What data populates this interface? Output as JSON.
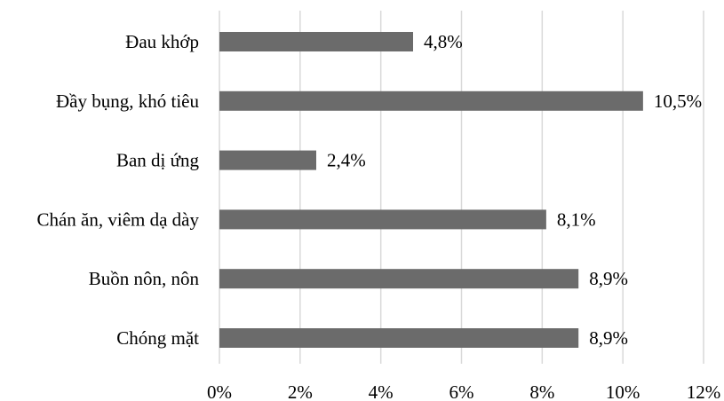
{
  "chart_data": {
    "type": "bar",
    "orientation": "horizontal",
    "categories": [
      "Đau khớp",
      "Đầy bụng, khó tiêu",
      "Ban dị ứng",
      "Chán ăn, viêm dạ dày",
      "Buồn nôn, nôn",
      "Chóng mặt"
    ],
    "values": [
      4.8,
      10.5,
      2.4,
      8.1,
      8.9,
      8.9
    ],
    "data_labels": [
      "4,8%",
      "10,5%",
      "2,4%",
      "8,1%",
      "8,9%",
      "8,9%"
    ],
    "x_ticks": [
      0,
      2,
      4,
      6,
      8,
      10,
      12
    ],
    "x_tick_labels": [
      "0%",
      "2%",
      "4%",
      "6%",
      "8%",
      "10%",
      "12%"
    ],
    "xlim": [
      0,
      12
    ],
    "grid": true,
    "bar_color": "#6b6b6b",
    "grid_color": "#d9d9d9"
  }
}
